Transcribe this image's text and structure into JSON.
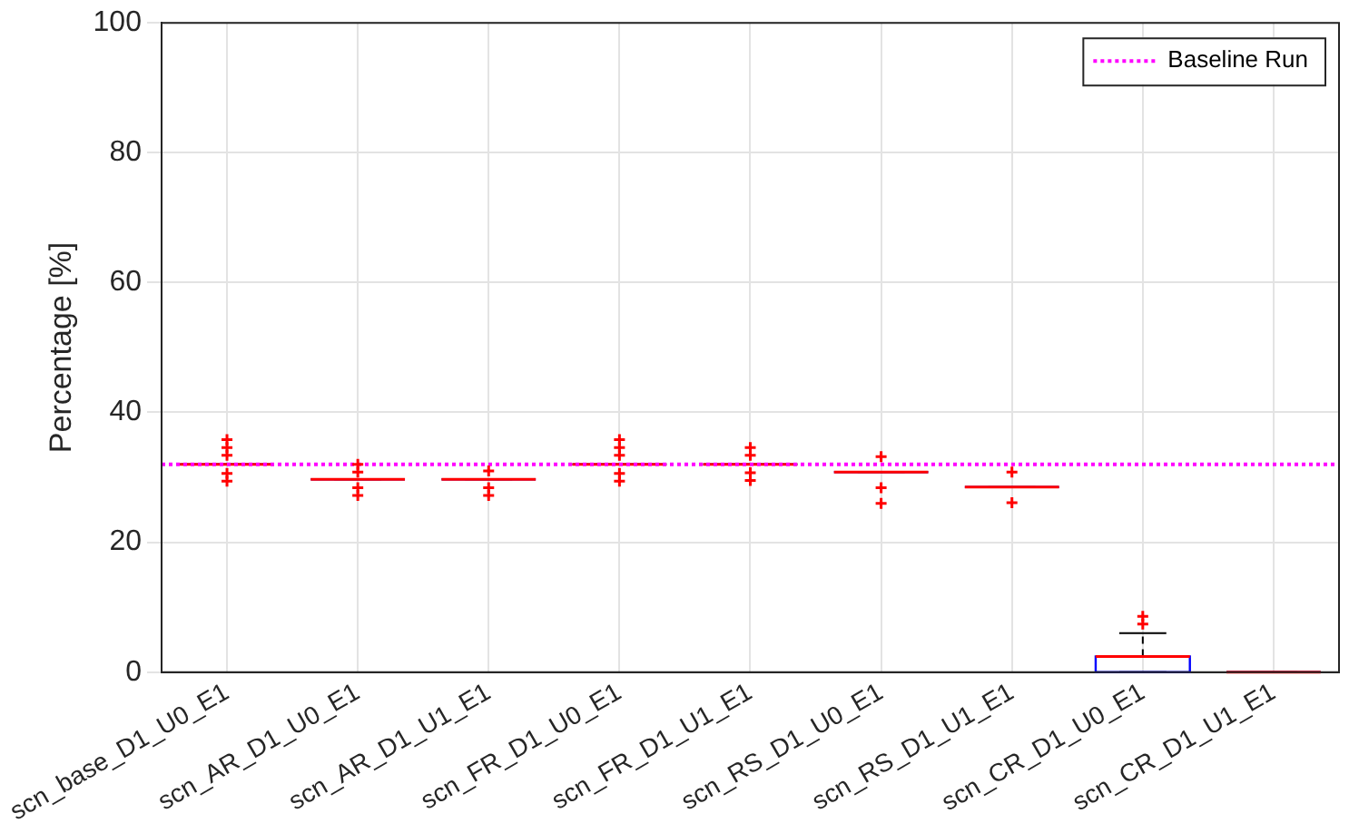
{
  "chart_data": {
    "type": "box",
    "ylabel": "Percentage [%]",
    "categories": [
      "scn_base_D1_U0_E1",
      "scn_AR_D1_U0_E1",
      "scn_AR_D1_U1_E1",
      "scn_FR_D1_U0_E1",
      "scn_FR_D1_U1_E1",
      "scn_RS_D1_U0_E1",
      "scn_RS_D1_U1_E1",
      "scn_CR_D1_U0_E1",
      "scn_CR_D1_U1_E1"
    ],
    "color": "#0000ff",
    "boxes": [
      {
        "low": 32,
        "q1": 32,
        "median": 32,
        "q3": 32,
        "high": 32,
        "outliers": [
          35.8,
          34.6,
          33.4,
          30.6,
          29.4
        ]
      },
      {
        "low": 29.7,
        "q1": 29.7,
        "median": 29.7,
        "q3": 29.7,
        "high": 29.7,
        "outliers": [
          32,
          30.8,
          28.4,
          27.2
        ]
      },
      {
        "low": 29.7,
        "q1": 29.7,
        "median": 29.7,
        "q3": 29.7,
        "high": 29.7,
        "outliers": [
          31,
          28.4,
          27.2
        ]
      },
      {
        "low": 32,
        "q1": 32,
        "median": 32,
        "q3": 32,
        "high": 32,
        "outliers": [
          35.8,
          34.6,
          33.4,
          30.6,
          29.4
        ]
      },
      {
        "low": 32,
        "q1": 32,
        "median": 32,
        "q3": 32,
        "high": 32,
        "outliers": [
          34.6,
          33.4,
          30.7,
          29.5
        ]
      },
      {
        "low": 30.8,
        "q1": 30.8,
        "median": 30.8,
        "q3": 30.8,
        "high": 30.8,
        "outliers": [
          33.2,
          28.4,
          26
        ]
      },
      {
        "low": 28.5,
        "q1": 28.5,
        "median": 28.5,
        "q3": 28.5,
        "high": 28.5,
        "outliers": [
          30.8,
          26.1
        ]
      },
      {
        "low": 0,
        "q1": 0,
        "median": 2.4,
        "q3": 2.4,
        "high": 6,
        "outliers": [
          7.4,
          8.6
        ]
      },
      {
        "low": 0,
        "q1": 0,
        "median": 0,
        "q3": 0,
        "high": 0
      }
    ],
    "ylim": [
      0,
      100
    ],
    "yticks": [
      0,
      20,
      40,
      60,
      80,
      100
    ],
    "grid": true,
    "legend": "top right",
    "ref_lines": [
      {
        "axis": "y",
        "value": 32,
        "label": "Baseline Run",
        "color": "#ff00ff",
        "line_style": "dotted"
      }
    ]
  }
}
